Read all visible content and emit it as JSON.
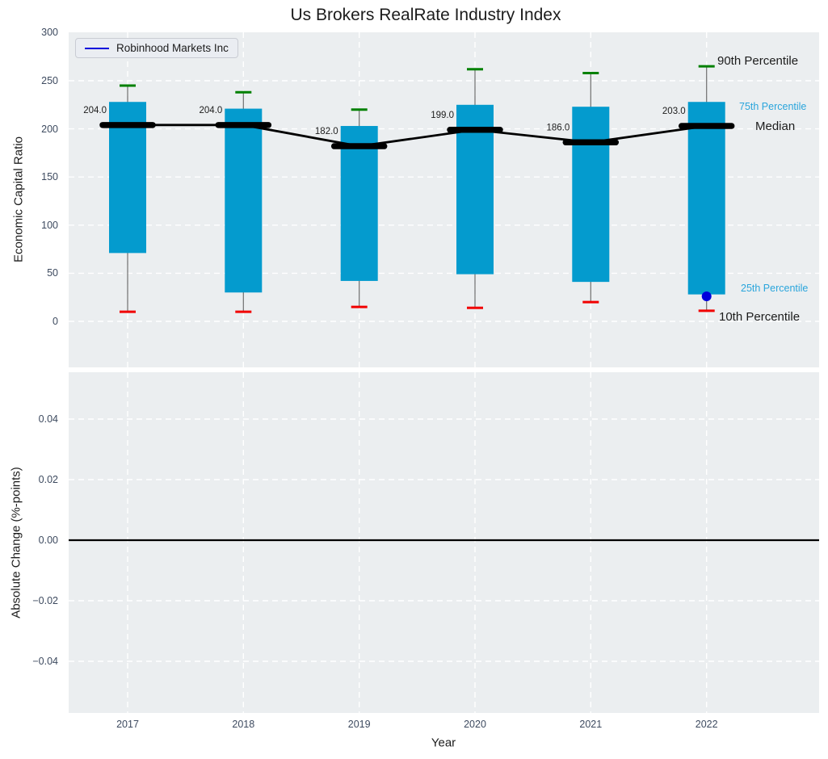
{
  "title": "Us Brokers RealRate Industry Index",
  "legend": {
    "label": "Robinhood Markets Inc"
  },
  "right_labels": {
    "p90": "90th Percentile",
    "p75": "75th Percentile",
    "median": "Median",
    "p25": "25th Percentile",
    "p10": "10th Percentile"
  },
  "colors": {
    "bar": "#049bce",
    "percentile_text_blue": "#2aa5dc",
    "green_cap": "#008000",
    "red_cap": "#f10000",
    "company_blue": "#0000dc",
    "line_black": "#000000",
    "plot_bg": "#ebeef0",
    "tick": "#3d4a5f",
    "grid": "#ffffff",
    "whisker": "#6e6e6e"
  },
  "chart_data": [
    {
      "type": "box-percentile",
      "title": "Us Brokers RealRate Industry Index",
      "ylabel": "Economic Capital Ratio",
      "ylim": [
        -48,
        300
      ],
      "yticks": [
        0,
        50,
        100,
        150,
        200,
        250,
        300
      ],
      "ytick_labels": [
        "0",
        "50",
        "100",
        "150",
        "200",
        "250",
        "300"
      ],
      "categories": [
        "2017",
        "2018",
        "2019",
        "2020",
        "2021",
        "2022"
      ],
      "series": [
        {
          "name": "90th Percentile",
          "role": "p90",
          "values": [
            245,
            238,
            220,
            262,
            258,
            265
          ]
        },
        {
          "name": "75th Percentile",
          "role": "p75",
          "values": [
            228,
            221,
            203,
            225,
            223,
            228
          ]
        },
        {
          "name": "Median",
          "role": "median",
          "values": [
            204,
            204,
            182,
            199,
            186,
            203
          ]
        },
        {
          "name": "25th Percentile",
          "role": "p25",
          "values": [
            71,
            30,
            42,
            49,
            41,
            28
          ]
        },
        {
          "name": "10th Percentile",
          "role": "p10",
          "values": [
            10,
            10,
            15,
            14,
            20,
            11
          ]
        },
        {
          "name": "Robinhood Markets Inc",
          "role": "company_point",
          "values": [
            null,
            null,
            null,
            null,
            null,
            26
          ]
        }
      ],
      "median_labels": [
        "204.0",
        "204.0",
        "182.0",
        "199.0",
        "186.0",
        "203.0"
      ],
      "grid": "dashed-white",
      "legend_position": "upper-left"
    },
    {
      "type": "line",
      "ylabel": "Absolute Change (%-points)",
      "xlabel": "Year",
      "ylim": [
        -0.057,
        0.055
      ],
      "yticks": [
        0.04,
        0.02,
        0,
        -0.02,
        -0.04
      ],
      "ytick_labels": [
        "0.04",
        "0.02",
        "0.00",
        "−0.02",
        "−0.04"
      ],
      "categories": [
        "2017",
        "2018",
        "2019",
        "2020",
        "2021",
        "2022"
      ],
      "series": [],
      "zero_line": 0.0,
      "grid": "dashed-white"
    }
  ]
}
